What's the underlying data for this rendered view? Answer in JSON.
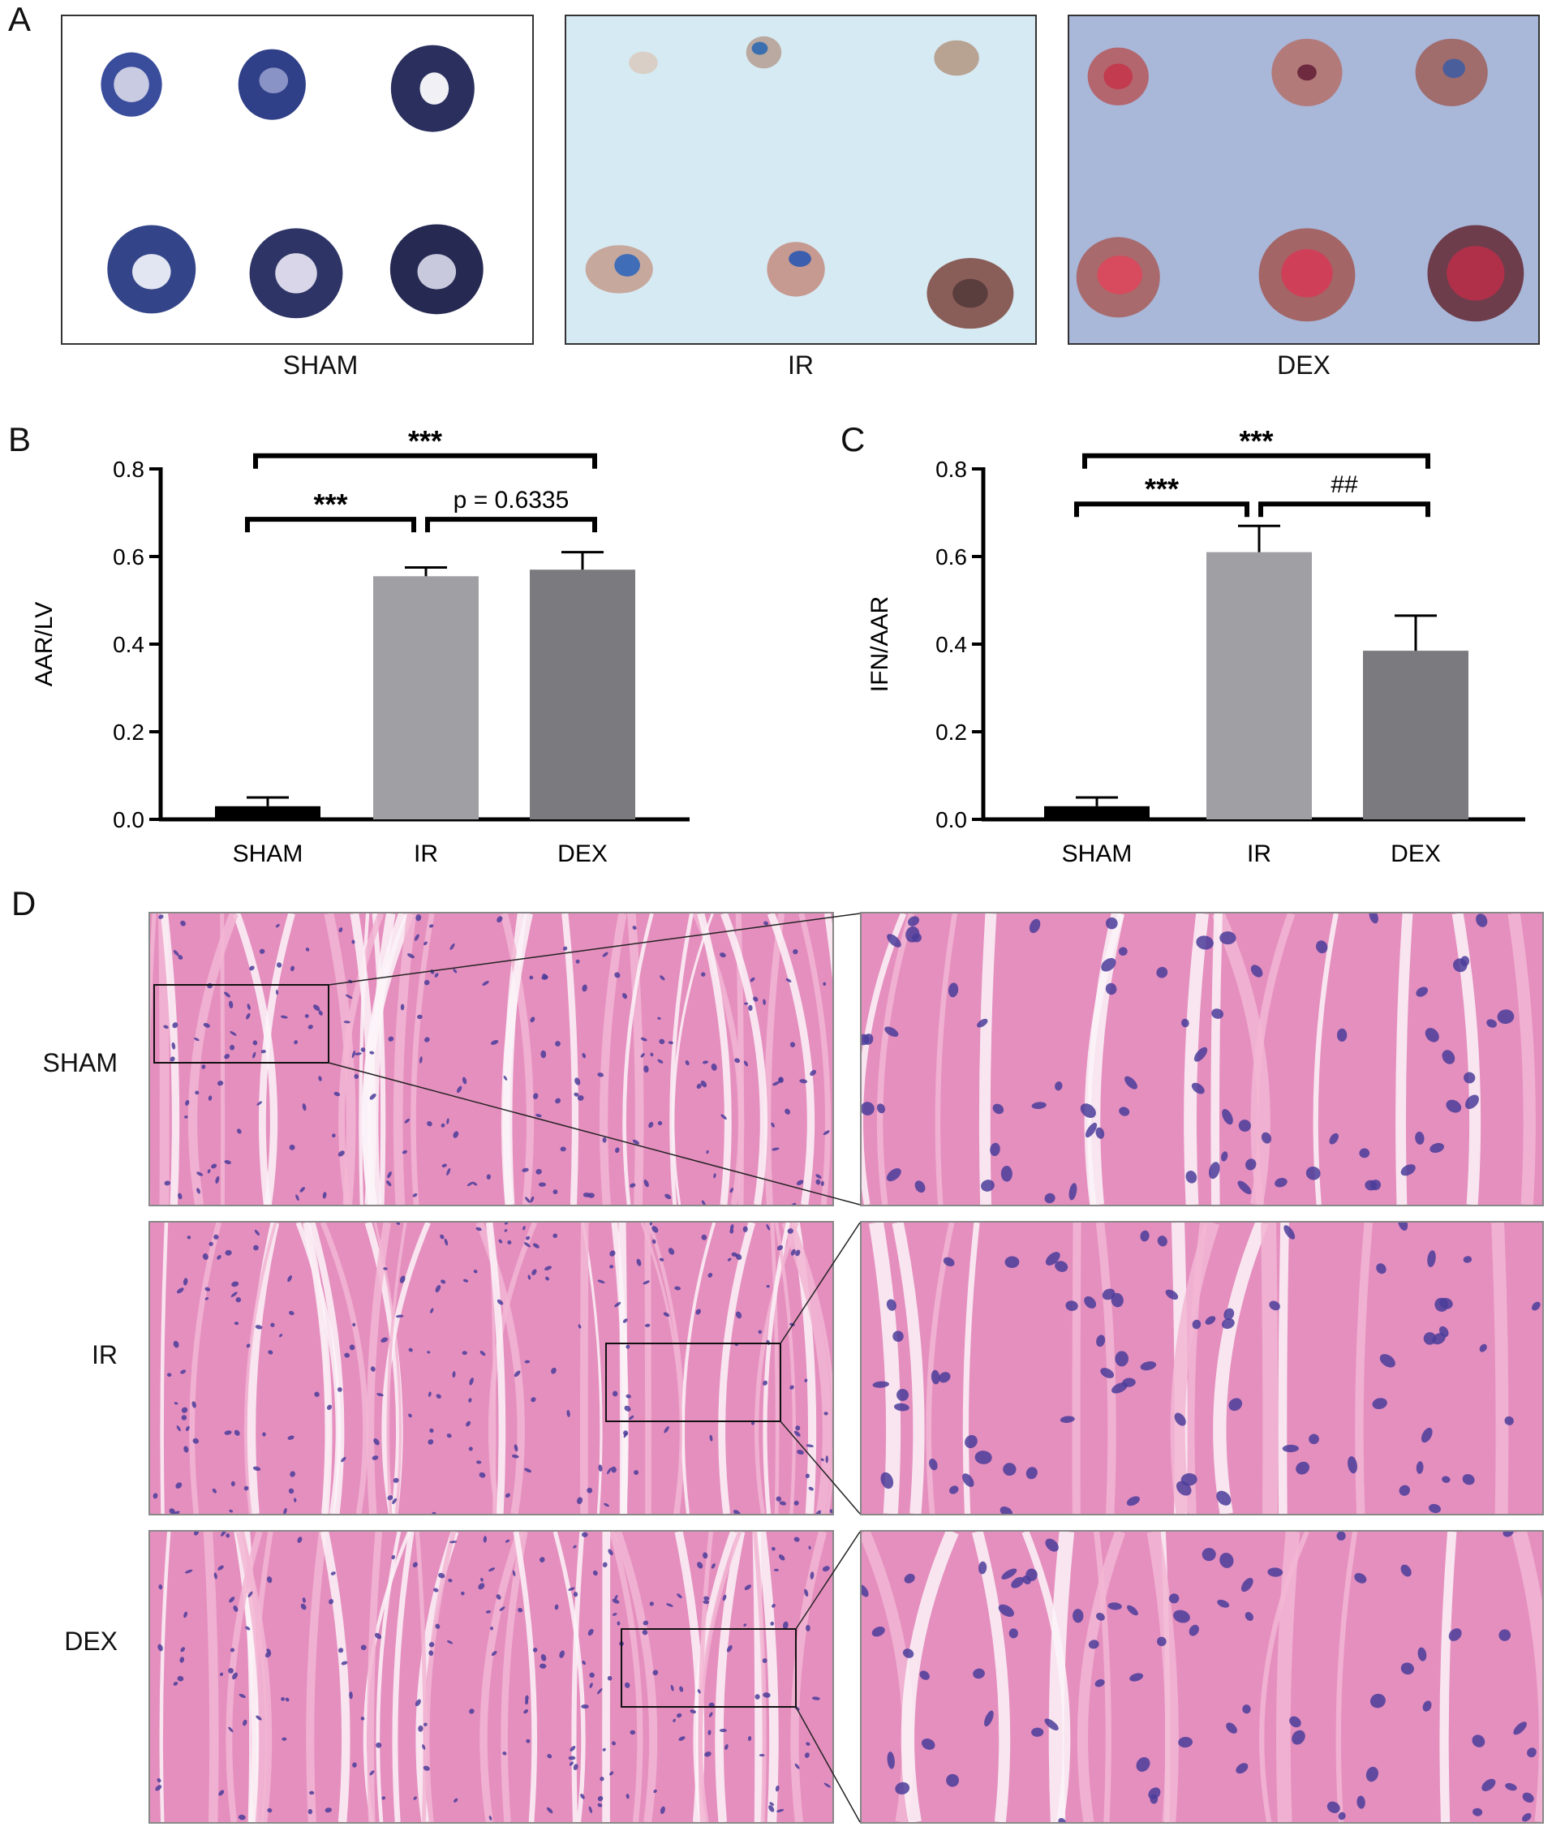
{
  "panels": {
    "A": {
      "letter": "A",
      "groups": [
        "SHAM",
        "IR",
        "DEX"
      ],
      "colors": {
        "sham_bg": "#ffffff",
        "ir_bg": "#d6eaf3",
        "dex_bg": "#a9b7d9"
      }
    },
    "B": {
      "letter": "B"
    },
    "C": {
      "letter": "C"
    },
    "D": {
      "letter": "D",
      "rows": [
        "SHAM",
        "IR",
        "DEX"
      ],
      "colors": {
        "tissue": "#e58fbf",
        "tissue_light": "#f2b6d4",
        "nuclei": "#4b3d9a",
        "gap": "#fbf5f8"
      }
    }
  },
  "chart_data": [
    {
      "panel": "B",
      "type": "bar",
      "ylabel": "AAR/LV",
      "categories": [
        "SHAM",
        "IR",
        "DEX"
      ],
      "values": [
        0.03,
        0.555,
        0.57
      ],
      "errors": [
        0.02,
        0.02,
        0.04
      ],
      "colors": [
        "#000000",
        "#a0a0a4",
        "#7b7b7f"
      ],
      "ylim": [
        0,
        0.8
      ],
      "yticks": [
        "0.0",
        "0.2",
        "0.4",
        "0.6",
        "0.8"
      ],
      "brackets": [
        {
          "from": 0,
          "to": 1,
          "label": "***",
          "level": 0.685
        },
        {
          "from": 1,
          "to": 2,
          "label": "p = 0.6335",
          "level": 0.685
        },
        {
          "from": 0,
          "to": 2,
          "label": "***",
          "level": 0.83
        }
      ]
    },
    {
      "panel": "C",
      "type": "bar",
      "ylabel": "IFN/AAR",
      "categories": [
        "SHAM",
        "IR",
        "DEX"
      ],
      "values": [
        0.03,
        0.61,
        0.385
      ],
      "errors": [
        0.02,
        0.06,
        0.08
      ],
      "colors": [
        "#000000",
        "#a0a0a4",
        "#7b7b7f"
      ],
      "ylim": [
        0,
        0.8
      ],
      "yticks": [
        "0.0",
        "0.2",
        "0.4",
        "0.6",
        "0.8"
      ],
      "brackets": [
        {
          "from": 0,
          "to": 1,
          "label": "***",
          "level": 0.72
        },
        {
          "from": 1,
          "to": 2,
          "label": "##",
          "level": 0.72
        },
        {
          "from": 0,
          "to": 2,
          "label": "***",
          "level": 0.83
        }
      ]
    }
  ]
}
